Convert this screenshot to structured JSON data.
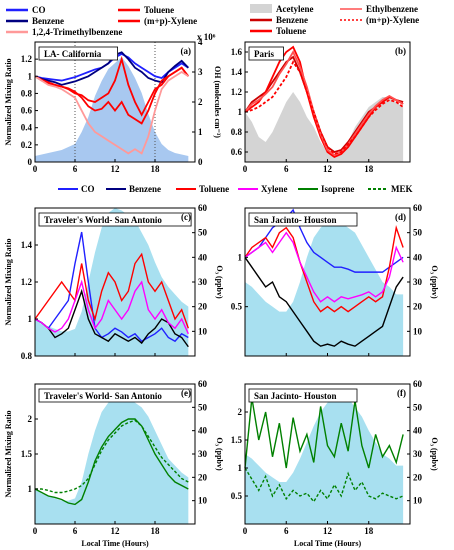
{
  "chart_data": [
    {
      "id": "a",
      "type": "line",
      "panel_label": "(a)",
      "title": "LA- California",
      "ylabel": "Normalized Mixing Ratio",
      "y2label": "OH (molecules cm⁻³)",
      "y2_exponent": "x 10⁶",
      "ylim": [
        0,
        1.4
      ],
      "y2lim": [
        0,
        4
      ],
      "xticks": [
        "0",
        "6",
        "12",
        "18"
      ],
      "yticks": [
        "0",
        "0.2",
        "0.4",
        "0.6",
        "0.8",
        "1",
        "1.2"
      ],
      "y2ticks": [
        "0",
        "1",
        "2",
        "3",
        "4"
      ],
      "legend": [
        "CO",
        "Benzene",
        "1,2,4-Trimethylbenzene",
        "Toluene",
        "(m+p)-Xylene"
      ],
      "x": [
        0,
        1,
        2,
        3,
        4,
        5,
        6,
        7,
        8,
        9,
        10,
        11,
        12,
        13,
        14,
        15,
        16,
        17,
        18,
        19,
        20,
        21,
        22,
        23
      ],
      "area": {
        "name": "OH",
        "values": [
          0.2,
          0.25,
          0.3,
          0.35,
          0.4,
          0.5,
          0.6,
          1.0,
          1.5,
          2.2,
          2.7,
          3.1,
          3.3,
          3.5,
          3.2,
          2.8,
          2.3,
          1.6,
          1.0,
          0.6,
          0.4,
          0.3,
          0.25,
          0.2
        ]
      },
      "series": [
        {
          "name": "CO",
          "color": "#2020ff",
          "values": [
            1.0,
            0.98,
            0.97,
            0.96,
            0.95,
            0.97,
            0.99,
            1.02,
            1.05,
            1.08,
            1.1,
            1.15,
            1.22,
            1.26,
            1.22,
            1.15,
            1.1,
            1.05,
            1.0,
            0.98,
            1.05,
            1.1,
            1.15,
            1.1
          ]
        },
        {
          "name": "Benzene",
          "color": "#000080",
          "values": [
            1.0,
            0.97,
            0.95,
            0.93,
            0.9,
            0.92,
            0.94,
            0.97,
            1.0,
            1.05,
            1.1,
            1.15,
            1.25,
            1.28,
            1.2,
            1.1,
            1.05,
            0.98,
            0.95,
            0.93,
            1.05,
            1.12,
            1.18,
            1.1
          ]
        },
        {
          "name": "Toluene",
          "color": "#ff0000",
          "values": [
            1.0,
            0.95,
            0.92,
            0.9,
            0.88,
            0.85,
            0.8,
            0.78,
            0.72,
            0.7,
            0.75,
            0.8,
            0.95,
            1.2,
            0.9,
            0.7,
            0.55,
            0.7,
            0.85,
            0.9,
            1.0,
            1.05,
            1.1,
            1.0
          ]
        },
        {
          "name": "(m+p)-Xylene",
          "color": "#ff0000",
          "values": [
            1.0,
            0.96,
            0.93,
            0.9,
            0.88,
            0.86,
            0.82,
            0.75,
            0.65,
            0.6,
            0.62,
            0.7,
            0.6,
            0.7,
            0.55,
            0.5,
            0.45,
            0.6,
            0.8,
            0.95,
            1.0,
            1.05,
            1.1,
            1.0
          ]
        },
        {
          "name": "1,2,4-Trimethylbenzene",
          "color": "#ff9999",
          "values": [
            1.0,
            0.95,
            0.9,
            0.88,
            0.85,
            0.8,
            0.75,
            0.6,
            0.45,
            0.35,
            0.3,
            0.25,
            0.2,
            0.15,
            0.1,
            0.15,
            0.1,
            0.3,
            0.6,
            0.85,
            0.95,
            1.0,
            1.05,
            1.0
          ]
        }
      ]
    },
    {
      "id": "b",
      "type": "line",
      "panel_label": "(b)",
      "title": "Paris",
      "ylim": [
        0.5,
        1.7
      ],
      "xticks": [
        "0",
        "6",
        "12",
        "18"
      ],
      "yticks": [
        "0.6",
        "0.8",
        "1",
        "1.2",
        "1.4",
        "1.6"
      ],
      "legend": [
        "Acetylene",
        "Benzene",
        "Toluene",
        "Ethylbenzene",
        "(m+p)-Xylene"
      ],
      "x": [
        0,
        1,
        2,
        3,
        4,
        5,
        6,
        7,
        8,
        9,
        10,
        11,
        12,
        13,
        14,
        15,
        16,
        17,
        18,
        19,
        20,
        21,
        22,
        23
      ],
      "area": {
        "name": "Acetylene",
        "values": [
          1.0,
          0.9,
          0.75,
          0.7,
          0.8,
          0.95,
          1.1,
          1.2,
          1.1,
          0.95,
          0.85,
          0.7,
          0.6,
          0.58,
          0.6,
          0.7,
          0.85,
          0.95,
          1.05,
          1.1,
          1.15,
          1.15,
          1.1,
          1.05
        ]
      },
      "series": [
        {
          "name": "Benzene",
          "color": "#cc0000",
          "values": [
            1.0,
            1.1,
            1.15,
            1.2,
            1.3,
            1.4,
            1.5,
            1.55,
            1.4,
            1.2,
            1.0,
            0.8,
            0.65,
            0.6,
            0.62,
            0.7,
            0.8,
            0.9,
            1.0,
            1.05,
            1.1,
            1.15,
            1.12,
            1.1
          ]
        },
        {
          "name": "Toluene",
          "color": "#ff0000",
          "values": [
            1.0,
            1.05,
            1.1,
            1.2,
            1.35,
            1.5,
            1.6,
            1.65,
            1.5,
            1.2,
            0.95,
            0.75,
            0.6,
            0.55,
            0.58,
            0.65,
            0.75,
            0.85,
            0.95,
            1.05,
            1.1,
            1.15,
            1.12,
            1.08
          ]
        },
        {
          "name": "Ethylbenzene",
          "color": "#ff5050",
          "values": [
            1.0,
            1.08,
            1.12,
            1.18,
            1.25,
            1.38,
            1.48,
            1.6,
            1.45,
            1.25,
            1.0,
            0.78,
            0.62,
            0.57,
            0.6,
            0.68,
            0.78,
            0.88,
            0.98,
            1.06,
            1.12,
            1.16,
            1.12,
            1.08
          ]
        },
        {
          "name": "(m+p)-Xylene",
          "color": "#ff0000",
          "dash": true,
          "values": [
            1.0,
            1.02,
            1.05,
            1.1,
            1.15,
            1.25,
            1.35,
            1.5,
            1.4,
            1.2,
            1.0,
            0.8,
            0.65,
            0.58,
            0.6,
            0.68,
            0.75,
            0.85,
            0.95,
            1.02,
            1.08,
            1.12,
            1.1,
            1.05
          ]
        }
      ]
    },
    {
      "id": "c",
      "type": "line",
      "panel_label": "(c)",
      "title": "Traveler's World- San Antonio",
      "ylabel": "Normalized Mixing Ratio",
      "ylim": [
        0.8,
        1.6
      ],
      "y2lim": [
        0,
        60
      ],
      "xticks": [],
      "yticks": [
        "0.8",
        "1",
        "1.2",
        "1.4"
      ],
      "y2ticks": [
        "10",
        "20",
        "30",
        "40",
        "50",
        "60"
      ],
      "x": [
        0,
        1,
        2,
        3,
        4,
        5,
        6,
        7,
        8,
        9,
        10,
        11,
        12,
        13,
        14,
        15,
        16,
        17,
        18,
        19,
        20,
        21,
        22,
        23
      ],
      "area": {
        "name": "O3",
        "values": [
          15,
          13,
          12,
          11,
          10,
          10,
          11,
          18,
          30,
          42,
          52,
          58,
          60,
          59,
          57,
          55,
          50,
          45,
          38,
          32,
          28,
          25,
          22,
          20
        ]
      },
      "series": [
        {
          "name": "CO",
          "color": "#2020ff",
          "values": [
            1.0,
            0.98,
            0.95,
            1.0,
            1.05,
            1.1,
            1.3,
            1.47,
            1.2,
            0.95,
            0.9,
            0.92,
            0.95,
            0.93,
            0.9,
            0.92,
            0.88,
            0.9,
            0.92,
            0.95,
            0.9,
            0.88,
            0.92,
            0.9
          ]
        },
        {
          "name": "Benzene",
          "color": "#000000",
          "values": [
            1.0,
            0.98,
            0.95,
            0.9,
            0.92,
            0.95,
            1.05,
            1.15,
            1.0,
            0.92,
            0.9,
            0.88,
            0.92,
            0.9,
            0.88,
            0.9,
            0.87,
            0.92,
            0.95,
            1.0,
            0.98,
            0.92,
            0.9,
            0.85
          ]
        },
        {
          "name": "Toluene",
          "color": "#ff0000",
          "values": [
            1.0,
            1.05,
            1.1,
            1.15,
            1.2,
            1.15,
            1.1,
            1.3,
            1.1,
            1.0,
            1.15,
            1.25,
            1.2,
            1.1,
            1.15,
            1.3,
            1.35,
            1.2,
            1.15,
            1.2,
            1.1,
            1.0,
            1.05,
            0.95
          ]
        },
        {
          "name": "Xylene",
          "color": "#ff00ff",
          "values": [
            1.0,
            0.98,
            0.95,
            0.93,
            0.95,
            1.0,
            1.1,
            1.2,
            1.05,
            0.95,
            1.0,
            1.1,
            1.05,
            1.0,
            1.05,
            1.15,
            1.2,
            1.05,
            1.0,
            1.05,
            0.98,
            0.95,
            1.0,
            0.92
          ]
        }
      ]
    },
    {
      "id": "d",
      "type": "line",
      "panel_label": "(d)",
      "title": "San Jacinto- Houston",
      "ylim": [
        0,
        1.5
      ],
      "y2lim": [
        0,
        60
      ],
      "xticks": [],
      "yticks": [
        "0.5",
        "1"
      ],
      "y2ticks": [
        "10",
        "20",
        "30",
        "40",
        "50",
        "60"
      ],
      "x": [
        0,
        1,
        2,
        3,
        4,
        5,
        6,
        7,
        8,
        9,
        10,
        11,
        12,
        13,
        14,
        15,
        16,
        17,
        18,
        19,
        20,
        21,
        22,
        23
      ],
      "area": {
        "name": "O3",
        "values": [
          30,
          28,
          25,
          22,
          20,
          18,
          18,
          22,
          30,
          40,
          48,
          52,
          55,
          55,
          54,
          52,
          50,
          45,
          40,
          35,
          30,
          28,
          25,
          25
        ]
      },
      "series": [
        {
          "name": "CO",
          "color": "#2020ff",
          "values": [
            1.0,
            1.05,
            1.1,
            1.2,
            1.3,
            1.35,
            1.4,
            1.48,
            1.3,
            1.15,
            1.05,
            1.0,
            0.95,
            0.9,
            0.9,
            0.88,
            0.85,
            0.85,
            0.85,
            0.85,
            0.85,
            0.9,
            0.95,
            1.0
          ]
        },
        {
          "name": "Benzene",
          "color": "#000000",
          "values": [
            1.0,
            0.9,
            0.8,
            0.7,
            0.75,
            0.6,
            0.55,
            0.45,
            0.35,
            0.25,
            0.15,
            0.1,
            0.12,
            0.1,
            0.15,
            0.12,
            0.1,
            0.15,
            0.2,
            0.25,
            0.3,
            0.5,
            0.7,
            0.8
          ]
        },
        {
          "name": "Toluene",
          "color": "#ff0000",
          "values": [
            1.0,
            1.1,
            1.15,
            1.2,
            1.1,
            1.25,
            1.3,
            1.2,
            0.95,
            0.75,
            0.55,
            0.45,
            0.5,
            0.45,
            0.5,
            0.45,
            0.5,
            0.55,
            0.6,
            0.55,
            0.6,
            0.9,
            1.3,
            1.1
          ]
        },
        {
          "name": "Xylene",
          "color": "#ff00ff",
          "values": [
            1.0,
            1.05,
            1.1,
            1.15,
            1.05,
            1.15,
            1.25,
            1.15,
            0.95,
            0.8,
            0.65,
            0.55,
            0.6,
            0.55,
            0.6,
            0.58,
            0.6,
            0.62,
            0.65,
            0.6,
            0.65,
            0.8,
            1.1,
            0.95
          ]
        }
      ]
    },
    {
      "id": "e",
      "type": "line",
      "panel_label": "(e)",
      "title": "Traveler's World- San Antonio",
      "ylabel": "Normalized Mixing Ratio",
      "ylim": [
        0.5,
        2.5
      ],
      "y2lim": [
        0,
        60
      ],
      "xticks": [
        "0",
        "6",
        "12",
        "18"
      ],
      "yticks": [
        "1",
        "1.5",
        "2"
      ],
      "y2ticks": [
        "10",
        "20",
        "30",
        "40",
        "50",
        "60"
      ],
      "x": [
        0,
        1,
        2,
        3,
        4,
        5,
        6,
        7,
        8,
        9,
        10,
        11,
        12,
        13,
        14,
        15,
        16,
        17,
        18,
        19,
        20,
        21,
        22,
        23
      ],
      "area": {
        "name": "O3",
        "values": [
          15,
          13,
          12,
          11,
          10,
          10,
          11,
          18,
          30,
          40,
          48,
          52,
          55,
          56,
          54,
          52,
          50,
          46,
          40,
          34,
          28,
          25,
          22,
          20
        ]
      },
      "series": [
        {
          "name": "Isoprene",
          "color": "#008000",
          "values": [
            1.0,
            0.95,
            0.9,
            0.88,
            0.85,
            0.8,
            0.78,
            0.85,
            1.1,
            1.4,
            1.6,
            1.75,
            1.85,
            1.95,
            2.0,
            2.0,
            1.9,
            1.7,
            1.5,
            1.35,
            1.2,
            1.1,
            1.05,
            1.0
          ]
        },
        {
          "name": "MEK",
          "color": "#008000",
          "dash": true,
          "values": [
            1.0,
            1.0,
            0.98,
            0.95,
            0.95,
            0.97,
            1.0,
            1.05,
            1.15,
            1.35,
            1.55,
            1.7,
            1.8,
            1.9,
            1.95,
            1.98,
            1.9,
            1.75,
            1.6,
            1.45,
            1.35,
            1.25,
            1.15,
            1.1
          ]
        }
      ]
    },
    {
      "id": "f",
      "type": "line",
      "panel_label": "(f)",
      "title": "San Jacinto- Houston",
      "ylim": [
        0,
        2.5
      ],
      "y2lim": [
        0,
        60
      ],
      "xticks": [
        "0",
        "6",
        "12",
        "18"
      ],
      "yticks": [
        "0.5",
        "1",
        "1.5",
        "2"
      ],
      "y2ticks": [
        "10",
        "20",
        "30",
        "40",
        "50",
        "60"
      ],
      "x": [
        0,
        1,
        2,
        3,
        4,
        5,
        6,
        7,
        8,
        9,
        10,
        11,
        12,
        13,
        14,
        15,
        16,
        17,
        18,
        19,
        20,
        21,
        22,
        23
      ],
      "area": {
        "name": "O3",
        "values": [
          30,
          28,
          25,
          22,
          20,
          18,
          18,
          22,
          28,
          35,
          42,
          48,
          52,
          54,
          55,
          54,
          50,
          46,
          40,
          35,
          30,
          28,
          25,
          25
        ]
      },
      "series": [
        {
          "name": "Isoprene",
          "color": "#008000",
          "values": [
            1.0,
            2.25,
            1.5,
            2.0,
            1.2,
            1.8,
            1.0,
            1.9,
            1.3,
            1.6,
            1.1,
            2.1,
            1.4,
            1.2,
            1.8,
            1.3,
            2.2,
            1.4,
            1.0,
            1.6,
            1.2,
            1.4,
            1.1,
            1.6
          ]
        },
        {
          "name": "MEK",
          "color": "#008000",
          "dash": true,
          "values": [
            1.0,
            0.8,
            0.6,
            0.85,
            0.5,
            0.7,
            0.45,
            0.6,
            0.5,
            0.55,
            0.4,
            0.6,
            0.45,
            0.7,
            0.5,
            0.9,
            0.6,
            0.75,
            0.5,
            0.45,
            0.55,
            0.5,
            0.45,
            0.5
          ]
        }
      ]
    }
  ],
  "shared_legend": [
    {
      "name": "CO",
      "color": "#2020ff"
    },
    {
      "name": "Benzene",
      "color": "#000080"
    },
    {
      "name": "Toluene",
      "color": "#ff0000"
    },
    {
      "name": "Xylene",
      "color": "#ff00ff"
    },
    {
      "name": "Isoprene",
      "color": "#008000"
    },
    {
      "name": "MEK",
      "color": "#008000",
      "dash": true
    }
  ],
  "labels": {
    "ylabel_norm": "Normalized Mixing Ratio",
    "ylabel_o3": "O₃ (ppbv)",
    "xlabel": "Local Time (Hours)"
  }
}
